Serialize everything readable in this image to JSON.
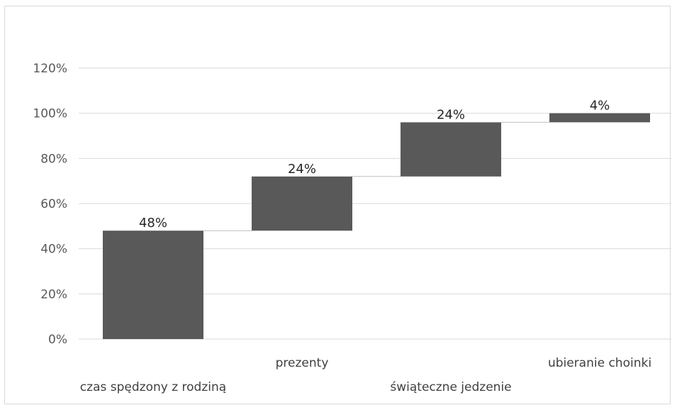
{
  "chart_data": {
    "type": "bar",
    "subtype": "waterfall",
    "categories": [
      "czas spędzony z rodziną",
      "prezenty",
      "świąteczne jedzenie",
      "ubieranie choinki"
    ],
    "values": [
      48,
      24,
      24,
      4
    ],
    "data_labels": [
      "48%",
      "24%",
      "24%",
      "4%"
    ],
    "y_ticks": [
      "0%",
      "20%",
      "40%",
      "60%",
      "80%",
      "100%",
      "120%"
    ],
    "ylim": [
      0,
      120
    ],
    "y_unit": "%",
    "grid": true,
    "legend": "none",
    "bar_color": "#595959"
  }
}
